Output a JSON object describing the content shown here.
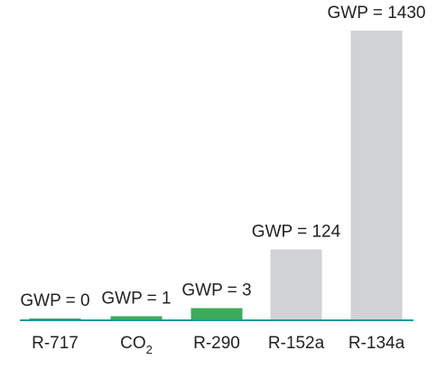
{
  "chart_data": {
    "type": "bar",
    "categories": [
      "R-717",
      "CO2",
      "R-290",
      "R-152a",
      "R-134a"
    ],
    "category_labels": [
      {
        "main": "R-717",
        "sub": ""
      },
      {
        "main": "CO",
        "sub": "2"
      },
      {
        "main": "R-290",
        "sub": ""
      },
      {
        "main": "R-152a",
        "sub": ""
      },
      {
        "main": "R-134a",
        "sub": ""
      }
    ],
    "values": [
      0,
      1,
      3,
      124,
      1430
    ],
    "display_values": [
      6,
      20,
      60,
      350,
      1430
    ],
    "data_labels": [
      "GWP = 0",
      "GWP = 1",
      "GWP = 3",
      "GWP = 124",
      "GWP = 1430"
    ],
    "colors": [
      "#3daa5c",
      "#3daa5c",
      "#3daa5c",
      "#d1d2d4",
      "#d1d2d4"
    ],
    "axis_color": "#1a9aa0",
    "title": "",
    "xlabel": "",
    "ylabel": "",
    "ylim": [
      0,
      1430
    ],
    "grid": false,
    "legend": "none"
  }
}
